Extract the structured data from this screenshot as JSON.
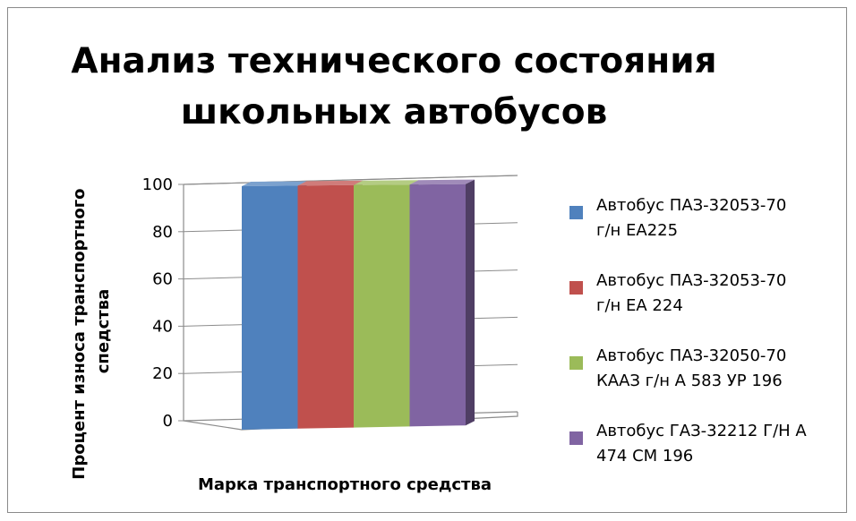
{
  "chart_data": {
    "type": "bar",
    "style": "3d-clustered-column",
    "title": "Анализ технического состояния школьных автобусов",
    "title_lines": [
      "Анализ технического состояния",
      "школьных автобусов"
    ],
    "xlabel": "Марка транспортного  средства",
    "ylabel": "Процент износа транспортного спедства",
    "ylabel_lines": [
      "Процент износа транспортного",
      "спедства"
    ],
    "ylim": [
      0,
      100
    ],
    "yticks": [
      "0",
      "20",
      "40",
      "60",
      "80",
      "100"
    ],
    "grid": true,
    "legend_position": "right",
    "series": [
      {
        "name": "Автобус ПАЗ-32053-70 г/н ЕА225",
        "name_lines": [
          "Автобус ПАЗ-32053-70",
          "г/н ЕА225"
        ],
        "values": [
          100
        ],
        "color": "#4f81bd"
      },
      {
        "name": "Автобус ПАЗ-32053-70 г/н ЕА 224",
        "name_lines": [
          "Автобус ПАЗ-32053-70",
          "г/н ЕА 224"
        ],
        "values": [
          100
        ],
        "color": "#c0504d"
      },
      {
        "name": "Автобус ПАЗ-32050-70 КААЗ г/н  А 583 УР 196",
        "name_lines": [
          "Автобус ПАЗ-32050-70",
          "КААЗ г/н  А 583 УР 196"
        ],
        "values": [
          100
        ],
        "color": "#9bbb59"
      },
      {
        "name": "Автобус ГАЗ-32212 Г/Н А 474 СМ 196",
        "name_lines": [
          "Автобус ГАЗ-32212 Г/Н А",
          "474 СМ 196"
        ],
        "values": [
          100
        ],
        "color": "#8064a2"
      }
    ]
  }
}
